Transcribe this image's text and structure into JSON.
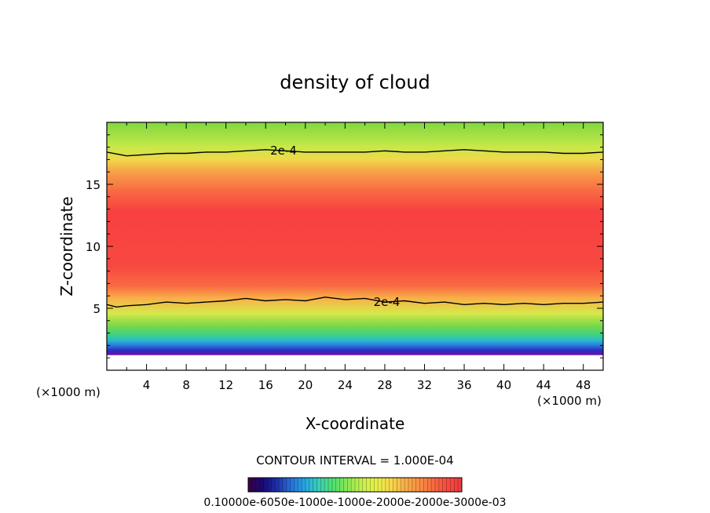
{
  "chart_data": {
    "type": "heatmap",
    "title": "density of cloud",
    "xlabel": "X-coordinate",
    "ylabel": "Z-coordinate",
    "x_unit_label": "(×1000 m)",
    "y_unit_label": "(×1000 m)",
    "xlim": [
      0,
      50
    ],
    "ylim": [
      0,
      20
    ],
    "x_ticks": [
      4,
      8,
      12,
      16,
      20,
      24,
      28,
      32,
      36,
      40,
      44,
      48
    ],
    "y_ticks": [
      5,
      10,
      15
    ],
    "grid": false,
    "contour_interval_text": "CONTOUR INTERVAL = 1.000E-04",
    "contours": [
      {
        "label": "2e-4",
        "label_x": 17.8,
        "points": [
          [
            0,
            17.6
          ],
          [
            2,
            17.3
          ],
          [
            4,
            17.4
          ],
          [
            6,
            17.5
          ],
          [
            8,
            17.5
          ],
          [
            10,
            17.6
          ],
          [
            12,
            17.6
          ],
          [
            14,
            17.7
          ],
          [
            16,
            17.8
          ],
          [
            18,
            17.7
          ],
          [
            20,
            17.6
          ],
          [
            22,
            17.6
          ],
          [
            24,
            17.6
          ],
          [
            26,
            17.6
          ],
          [
            28,
            17.7
          ],
          [
            30,
            17.6
          ],
          [
            32,
            17.6
          ],
          [
            34,
            17.7
          ],
          [
            36,
            17.8
          ],
          [
            38,
            17.7
          ],
          [
            40,
            17.6
          ],
          [
            42,
            17.6
          ],
          [
            44,
            17.6
          ],
          [
            46,
            17.5
          ],
          [
            48,
            17.5
          ],
          [
            50,
            17.6
          ]
        ]
      },
      {
        "label": "2e-4",
        "label_x": 28.2,
        "points": [
          [
            0,
            5.3
          ],
          [
            1,
            5.1
          ],
          [
            2,
            5.2
          ],
          [
            4,
            5.3
          ],
          [
            6,
            5.5
          ],
          [
            8,
            5.4
          ],
          [
            10,
            5.5
          ],
          [
            12,
            5.6
          ],
          [
            14,
            5.8
          ],
          [
            16,
            5.6
          ],
          [
            18,
            5.7
          ],
          [
            20,
            5.6
          ],
          [
            22,
            5.9
          ],
          [
            24,
            5.7
          ],
          [
            26,
            5.8
          ],
          [
            28,
            5.5
          ],
          [
            30,
            5.6
          ],
          [
            32,
            5.4
          ],
          [
            34,
            5.5
          ],
          [
            36,
            5.3
          ],
          [
            38,
            5.4
          ],
          [
            40,
            5.3
          ],
          [
            42,
            5.4
          ],
          [
            44,
            5.3
          ],
          [
            46,
            5.4
          ],
          [
            48,
            5.4
          ],
          [
            50,
            5.5
          ]
        ]
      }
    ],
    "colorbar": {
      "tick_labels_text": "0.10000e-6050e-1000e-1000e-2000e-2000e-3000e-03",
      "colors": [
        "#3a0046",
        "#1a0a70",
        "#1c2fa8",
        "#2a70d6",
        "#26a8e0",
        "#3bd0b4",
        "#52e070",
        "#8ce850",
        "#c8f050",
        "#e8f048",
        "#f8d84a",
        "#f8b048",
        "#f89042",
        "#f86a40",
        "#f84a40",
        "#f03a3a"
      ]
    }
  }
}
